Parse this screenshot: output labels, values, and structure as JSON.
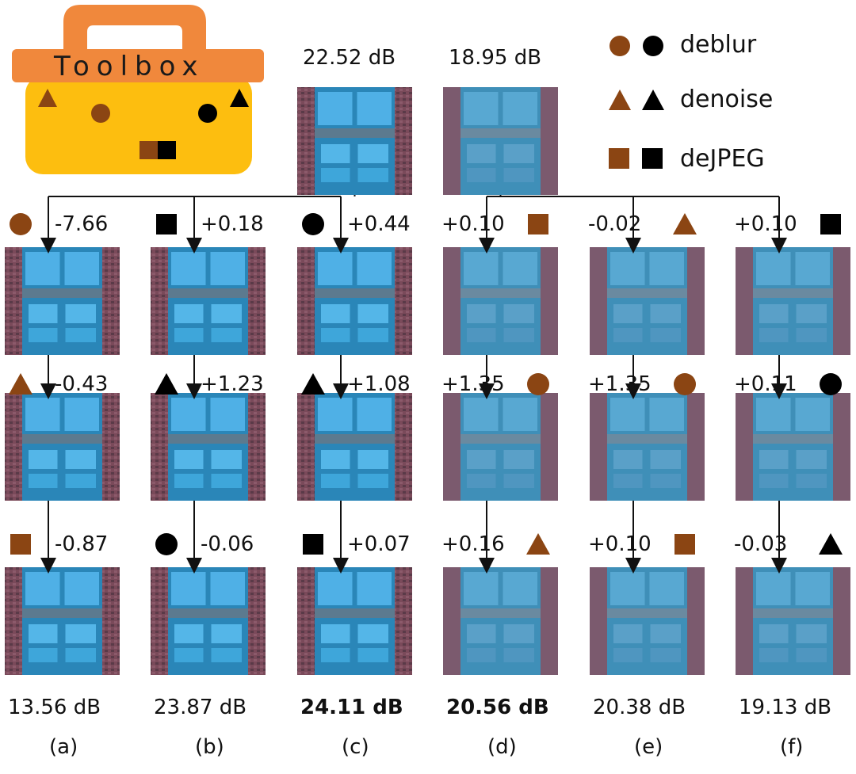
{
  "toolbox": {
    "label": "Toolbox"
  },
  "legend": [
    {
      "label": "deblur",
      "icon": "circle"
    },
    {
      "label": "denoise",
      "icon": "triangle"
    },
    {
      "label": "deJPEG",
      "icon": "square"
    }
  ],
  "colors": {
    "brown": "#8B4513",
    "black": "#000000",
    "toolbox_orange": "#F0883C",
    "toolbox_yellow": "#FDBE0F"
  },
  "inputs": [
    {
      "psnr": "22.52 dB"
    },
    {
      "psnr": "18.95 dB"
    }
  ],
  "columns": [
    {
      "letter": "(a)",
      "final": "13.56 dB",
      "bold": false,
      "steps": [
        {
          "tool": "circle",
          "color": "brown",
          "delta": "-7.66"
        },
        {
          "tool": "triangle",
          "color": "brown",
          "delta": "-0.43"
        },
        {
          "tool": "square",
          "color": "brown",
          "delta": "-0.87"
        }
      ]
    },
    {
      "letter": "(b)",
      "final": "23.87 dB",
      "bold": false,
      "steps": [
        {
          "tool": "square",
          "color": "black",
          "delta": "+0.18"
        },
        {
          "tool": "triangle",
          "color": "black",
          "delta": "+1.23"
        },
        {
          "tool": "circle",
          "color": "black",
          "delta": "-0.06"
        }
      ]
    },
    {
      "letter": "(c)",
      "final": "24.11 dB",
      "bold": true,
      "steps": [
        {
          "tool": "circle",
          "color": "black",
          "delta": "+0.44"
        },
        {
          "tool": "triangle",
          "color": "black",
          "delta": "+1.08"
        },
        {
          "tool": "square",
          "color": "black",
          "delta": "+0.07"
        }
      ]
    },
    {
      "letter": "(d)",
      "final": "20.56 dB",
      "bold": true,
      "steps": [
        {
          "tool": "square",
          "color": "brown",
          "delta": "+0.10"
        },
        {
          "tool": "circle",
          "color": "brown",
          "delta": "+1.35"
        },
        {
          "tool": "triangle",
          "color": "brown",
          "delta": "+0.16"
        }
      ]
    },
    {
      "letter": "(e)",
      "final": "20.38 dB",
      "bold": false,
      "steps": [
        {
          "tool": "triangle",
          "color": "brown",
          "delta": "-0.02"
        },
        {
          "tool": "circle",
          "color": "brown",
          "delta": "+1.35"
        },
        {
          "tool": "square",
          "color": "brown",
          "delta": "+0.10"
        }
      ]
    },
    {
      "letter": "(f)",
      "final": "19.13 dB",
      "bold": false,
      "steps": [
        {
          "tool": "square",
          "color": "black",
          "delta": "+0.10"
        },
        {
          "tool": "circle",
          "color": "black",
          "delta": "+0.11"
        },
        {
          "tool": "triangle",
          "color": "black",
          "delta": "-0.03"
        }
      ]
    }
  ]
}
